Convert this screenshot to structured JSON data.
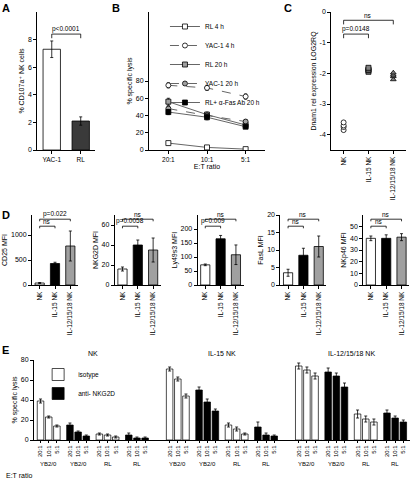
{
  "chart_data": [
    {
      "panel": "A",
      "type": "bar",
      "categories": [
        "YAC-1",
        "RL"
      ],
      "values": [
        7.3,
        2.1
      ],
      "errors": [
        0.6,
        0.3
      ],
      "colors": [
        "#ffffff",
        "#3a3a3a"
      ],
      "ylabel": "% CD107a⁺ NK cells",
      "ylim": [
        0,
        10
      ],
      "yticks": [
        0,
        2,
        4,
        6,
        8
      ],
      "comparisons": [
        {
          "from": "YAC-1",
          "to": "RL",
          "label": "p<0.0001"
        }
      ]
    },
    {
      "panel": "B",
      "type": "line",
      "categories": [
        "20:1",
        "10:1",
        "5:1"
      ],
      "xlabel": "E:T ratio",
      "ylabel": "% specific lysis",
      "ylim": [
        0,
        160
      ],
      "yticks": [
        0,
        20,
        40,
        60,
        80
      ],
      "legend": "upper right",
      "series": [
        {
          "name": "RL 4 h",
          "color": "#ffffff",
          "marker": "square",
          "line_style": "solid",
          "values": [
            8,
            3,
            1
          ],
          "errors": [
            2,
            1,
            1
          ]
        },
        {
          "name": "YAC-1 4 h",
          "color": "#ffffff",
          "marker": "circle",
          "line_style": "dash",
          "values": [
            75,
            72,
            62
          ],
          "errors": [
            3,
            3,
            3
          ]
        },
        {
          "name": "RL 20 h",
          "color": "#a0a0a0",
          "marker": "square",
          "line_style": "solid",
          "values": [
            56,
            41,
            29
          ],
          "errors": [
            4,
            3,
            3
          ]
        },
        {
          "name": "YAC-1 20 h",
          "color": "#a0a0a0",
          "marker": "circle",
          "line_style": "dash",
          "values": [
            48,
            40,
            33
          ],
          "errors": [
            3,
            2,
            2
          ]
        },
        {
          "name": "RL+ α-Fas Ab 20 h",
          "color": "#000000",
          "marker": "square",
          "line_style": "solid",
          "values": [
            44,
            38,
            27
          ],
          "errors": [
            3,
            3,
            2
          ]
        }
      ]
    },
    {
      "panel": "C",
      "type": "scatter",
      "categories": [
        "NK",
        "IL-15 NK",
        "IL-12/15/18 NK"
      ],
      "values": [
        [
          -3.85,
          -3.75,
          -3.7,
          -3.6
        ],
        [
          -1.95,
          -1.9,
          -1.88,
          -1.82
        ],
        [
          -2.2,
          -2.1,
          -2.05,
          -1.98
        ]
      ],
      "markers": [
        "circle",
        "square",
        "triangle-up"
      ],
      "colors": [
        "#ffffff",
        "#808080",
        "#808080"
      ],
      "ylabel": "Dnam1 rel expression LOG2RQ",
      "ylim": [
        -4.5,
        0
      ],
      "yticks": [
        -4,
        -3,
        -2,
        -1,
        0
      ],
      "comparisons": [
        {
          "from": "NK",
          "to": "IL-15 NK",
          "label": "p=0.0148"
        },
        {
          "from": "NK",
          "to": "IL-12/15/18 NK",
          "label": "ns"
        }
      ]
    },
    {
      "panel": "D",
      "type": "bar_panels",
      "categories": [
        "NK",
        "IL-15 NK",
        "IL-12/15/18 NK"
      ],
      "colors": [
        "#ffffff",
        "#000000",
        "#a0a0a0"
      ],
      "subplots": [
        {
          "ylabel": "CD25 MFI",
          "values": [
            40,
            430,
            780
          ],
          "errors": [
            10,
            25,
            300
          ],
          "ylim": [
            0,
            1400
          ],
          "yticks": [
            0,
            500,
            1000
          ],
          "comparisons": [
            {
              "from": "NK",
              "to": "IL-15 NK",
              "label": "ns"
            },
            {
              "from": "NK",
              "to": "IL-12/15/18 NK",
              "label": "p=0.022"
            }
          ]
        },
        {
          "ylabel": "NKG2D MFI",
          "values": [
            16,
            40,
            35
          ],
          "errors": [
            2,
            5,
            12
          ],
          "ylim": [
            0,
            70
          ],
          "yticks": [
            0,
            20,
            40,
            60
          ],
          "comparisons": [
            {
              "from": "NK",
              "to": "IL-15 NK",
              "label": "p=0.0058"
            },
            {
              "from": "NK",
              "to": "IL-12/15/18 NK",
              "label": "ns"
            }
          ]
        },
        {
          "ylabel": "Ly49s3 MFI",
          "values": [
            72,
            165,
            108
          ],
          "errors": [
            3,
            12,
            35
          ],
          "ylim": [
            0,
            250
          ],
          "yticks": [
            0,
            50,
            100,
            150,
            200
          ],
          "comparisons": [
            {
              "from": "NK",
              "to": "IL-15 NK",
              "label": "p=0.009"
            },
            {
              "from": "NK",
              "to": "IL-12/15/18 NK",
              "label": "ns"
            }
          ]
        },
        {
          "ylabel": "FasL MFI",
          "values": [
            3.5,
            8.5,
            11
          ],
          "errors": [
            1,
            2,
            3
          ],
          "ylim": [
            0,
            20
          ],
          "yticks": [
            0,
            5,
            10,
            15,
            20
          ],
          "comparisons": [
            {
              "from": "NK",
              "to": "IL-15 NK",
              "label": "ns"
            },
            {
              "from": "NK",
              "to": "IL-12/15/18 NK",
              "label": "ns"
            }
          ]
        },
        {
          "ylabel": "NKp46 MFI",
          "values": [
            40,
            40,
            41
          ],
          "errors": [
            2,
            3,
            3
          ],
          "ylim": [
            0,
            60
          ],
          "yticks": [
            0,
            10,
            20,
            30,
            40,
            50
          ],
          "comparisons": [
            {
              "from": "NK",
              "to": "IL-15 NK",
              "label": "ns"
            },
            {
              "from": "NK",
              "to": "IL-12/15/18 NK",
              "label": "ns"
            }
          ]
        }
      ]
    },
    {
      "panel": "E",
      "type": "grouped_bar",
      "groups": [
        "NK",
        "IL-15 NK",
        "IL-12/15/18 NK"
      ],
      "targets": [
        "YB2/0",
        "RL"
      ],
      "categories": [
        "20:1",
        "10:1",
        "5:1"
      ],
      "xlabel": "E:T ratio",
      "ylabel": "% specific lysis",
      "ylim": [
        0,
        80
      ],
      "yticks": [
        0,
        20,
        40,
        60,
        80
      ],
      "legend": "upper left",
      "series": [
        {
          "name": "isotype",
          "color": "#ffffff",
          "values": [
            [
              [
                39,
                23,
                14
              ],
              [
                6,
                5,
                3
              ]
            ],
            [
              [
                71,
                61,
                44
              ],
              [
                15,
                11,
                6
              ]
            ],
            [
              [
                74,
                70,
                64
              ],
              [
                26,
                21,
                18
              ]
            ]
          ],
          "errors": [
            [
              [
                2,
                1,
                1
              ],
              [
                1,
                1,
                1
              ]
            ],
            [
              [
                2,
                2,
                2
              ],
              [
                2,
                2,
                1
              ]
            ],
            [
              [
                3,
                3,
                3
              ],
              [
                4,
                3,
                3
              ]
            ]
          ]
        },
        {
          "name": "anti- NKG2D",
          "color": "#000000",
          "values": [
            [
              [
                15,
                8,
                4
              ],
              [
                5,
                2,
                2
              ]
            ],
            [
              [
                50,
                38,
                29
              ],
              [
                13,
                5,
                4
              ]
            ],
            [
              [
                68,
                64,
                53
              ],
              [
                27,
                22,
                18
              ]
            ]
          ],
          "errors": [
            [
              [
                2,
                1,
                1
              ],
              [
                2,
                1,
                1
              ]
            ],
            [
              [
                3,
                3,
                2
              ],
              [
                5,
                2,
                1
              ]
            ],
            [
              [
                4,
                3,
                4
              ],
              [
                3,
                2,
                2
              ]
            ]
          ]
        }
      ]
    }
  ]
}
